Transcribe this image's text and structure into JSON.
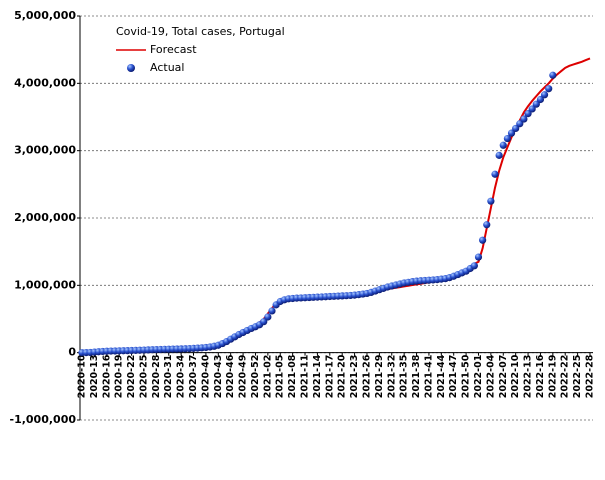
{
  "chart_data": {
    "type": "line",
    "title": "Covid-19, Total cases, Portugal",
    "categories": [
      "2020-10",
      null,
      null,
      "2020-13",
      null,
      null,
      "2020-16",
      null,
      null,
      "2020-19",
      null,
      null,
      "2020-22",
      null,
      null,
      "2020-25",
      null,
      null,
      "2020-28",
      null,
      null,
      "2020-31",
      null,
      null,
      "2020-34",
      null,
      null,
      "2020-37",
      null,
      null,
      "2020-40",
      null,
      null,
      "2020-43",
      null,
      null,
      "2020-46",
      null,
      null,
      "2020-49",
      null,
      null,
      "2020-52",
      null,
      null,
      "2021-02",
      null,
      null,
      "2021-05",
      null,
      null,
      "2021-08",
      null,
      null,
      "2021-11",
      null,
      null,
      "2021-14",
      null,
      null,
      "2021-17",
      null,
      null,
      "2021-20",
      null,
      null,
      "2021-23",
      null,
      null,
      "2021-26",
      null,
      null,
      "2021-29",
      null,
      null,
      "2021-32",
      null,
      null,
      "2021-35",
      null,
      null,
      "2021-38",
      null,
      null,
      "2021-41",
      null,
      null,
      "2021-44",
      null,
      null,
      "2021-47",
      null,
      null,
      "2021-50",
      null,
      null,
      "2022-01",
      null,
      null,
      "2022-04",
      null,
      null,
      "2022-07",
      null,
      null,
      "2022-10",
      null,
      null,
      "2022-13",
      null,
      null,
      "2022-16",
      null,
      null,
      "2022-19",
      null,
      null,
      "2022-22",
      null,
      null,
      "2022-25",
      null,
      null,
      "2022-28"
    ],
    "series": [
      {
        "name": "Forecast",
        "color": "#dd0000",
        "style": "line",
        "values": [
          0,
          1000,
          3000,
          8000,
          13000,
          17000,
          20000,
          23000,
          25000,
          27000,
          29000,
          30000,
          32000,
          34000,
          36000,
          38000,
          41000,
          43000,
          46000,
          48000,
          50000,
          51000,
          53000,
          54000,
          56000,
          58000,
          60000,
          63000,
          66000,
          70000,
          74000,
          80000,
          88000,
          100000,
          120000,
          145000,
          175000,
          210000,
          250000,
          290000,
          330000,
          370000,
          410000,
          450000,
          500000,
          580000,
          660000,
          730000,
          770000,
          795000,
          810000,
          818000,
          822000,
          826000,
          830000,
          834000,
          838000,
          842000,
          846000,
          850000,
          854000,
          858000,
          862000,
          866000,
          870000,
          874000,
          878000,
          884000,
          890000,
          898000,
          906000,
          914000,
          924000,
          934000,
          944000,
          954000,
          964000,
          974000,
          984000,
          994000,
          1004000,
          1014000,
          1024000,
          1034000,
          1044000,
          1054000,
          1064000,
          1074000,
          1084000,
          1094000,
          1110000,
          1130000,
          1160000,
          1200000,
          1260000,
          1320000,
          1350000,
          1550000,
          1850000,
          2150000,
          2450000,
          2700000,
          2900000,
          3050000,
          3200000,
          3330000,
          3450000,
          3570000,
          3660000,
          3740000,
          3810000,
          3880000,
          3940000,
          4000000,
          4070000,
          4130000,
          4180000,
          4230000,
          4260000,
          4280000,
          4300000,
          4320000,
          4345000,
          4370000
        ]
      },
      {
        "name": "Actual",
        "color": "#1a3fb0",
        "style": "markers",
        "values": [
          0,
          1000,
          3000,
          8000,
          14000,
          18000,
          21000,
          24000,
          25000,
          27000,
          29000,
          30000,
          32000,
          34000,
          36000,
          39000,
          41000,
          44000,
          46000,
          48000,
          50000,
          51000,
          53000,
          54000,
          56000,
          58000,
          61000,
          64000,
          68000,
          72000,
          77000,
          84000,
          95000,
          110000,
          135000,
          165000,
          200000,
          235000,
          270000,
          300000,
          330000,
          360000,
          385000,
          415000,
          460000,
          530000,
          620000,
          710000,
          760000,
          785000,
          800000,
          805000,
          810000,
          813000,
          816000,
          819000,
          822000,
          825000,
          828000,
          831000,
          834000,
          837000,
          840000,
          843000,
          846000,
          850000,
          855000,
          862000,
          870000,
          880000,
          895000,
          915000,
          935000,
          955000,
          975000,
          990000,
          1005000,
          1020000,
          1035000,
          1045000,
          1055000,
          1062000,
          1068000,
          1072000,
          1076000,
          1080000,
          1085000,
          1092000,
          1100000,
          1115000,
          1135000,
          1160000,
          1185000,
          1210000,
          1250000,
          1290000,
          1420000,
          1670000,
          1900000,
          2250000,
          2650000,
          2930000,
          3080000,
          3180000,
          3260000,
          3330000,
          3400000,
          3470000,
          3550000,
          3620000,
          3690000,
          3760000,
          3830000,
          3920000,
          4120000,
          null,
          null,
          null,
          null,
          null,
          null,
          null,
          null,
          null
        ]
      }
    ],
    "ylim": [
      -1000000,
      5000000
    ],
    "yticks": [
      {
        "value": -1000000,
        "label": "-1,000,000"
      },
      0,
      {
        "value": 1000000,
        "label": "1,000,000"
      },
      {
        "value": 2000000,
        "label": "2,000,000"
      },
      {
        "value": 3000000,
        "label": "3,000,000"
      },
      {
        "value": 4000000,
        "label": "4,000,000"
      },
      {
        "value": 5000000,
        "label": "5,000,000"
      }
    ],
    "grid": true,
    "legend": "upper left"
  }
}
